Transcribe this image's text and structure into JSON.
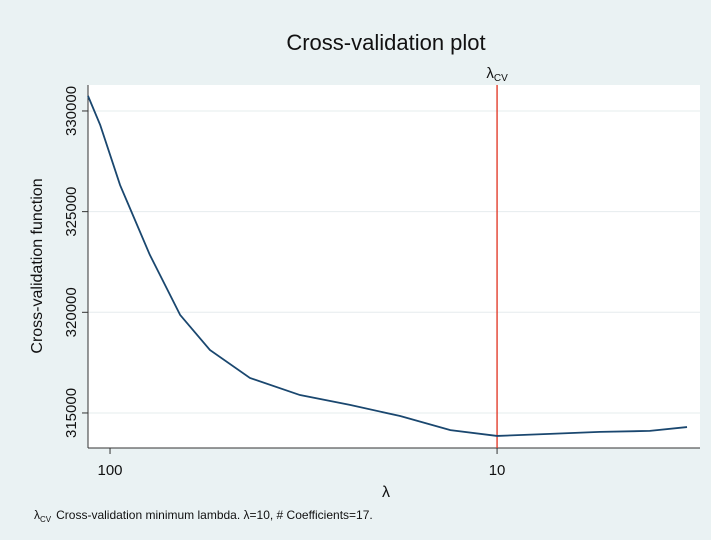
{
  "chart_data": {
    "type": "line",
    "title": "Cross-validation plot",
    "x_label": "λ",
    "y_label": "Cross-validation function",
    "xscale": "log",
    "x": [
      114,
      106,
      94.2,
      78.9,
      65.9,
      55.2,
      43.5,
      32.3,
      24.0,
      17.8,
      13.2,
      10,
      7.3,
      5.42,
      4.03,
      3.23
    ],
    "series": [
      {
        "name": "Cross-validation function",
        "color": "#1a476f",
        "values": [
          330750,
          329300,
          326320,
          322850,
          319870,
          318130,
          316740,
          315890,
          315400,
          314850,
          314150,
          313860,
          313960,
          314060,
          314110,
          314300
        ]
      }
    ],
    "xlim": [
      114,
      2.99
    ],
    "xticks": [
      100,
      10
    ],
    "ylim": [
      313260,
      331290
    ],
    "yticks": [
      315000,
      320000,
      325000,
      330000
    ],
    "grid": true,
    "vline": {
      "x": 10,
      "label": "λ",
      "label_sub": "CV",
      "color": "#e0301e"
    },
    "note": {
      "symbol": "λ",
      "sub": "CV",
      "text": "Cross-validation minimum lambda.  λ=10, # Coefficients=17."
    }
  }
}
